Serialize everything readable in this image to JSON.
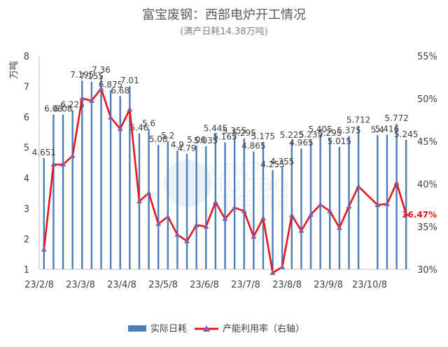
{
  "chart_data": {
    "type": "bar",
    "title": "富宝废钢：西部电炉开工情况",
    "subtitle": "(满产日耗14.38万吨)",
    "ylabel_left": "万吨",
    "ylim_left": [
      1,
      8
    ],
    "yticks_left": [
      1,
      2,
      3,
      4,
      5,
      6,
      7,
      8
    ],
    "ylim_right": [
      0.3,
      0.55
    ],
    "yticks_right": [
      "30%",
      "35%",
      "40%",
      "45%",
      "50%",
      "55%"
    ],
    "xtick_labels": [
      "23/2/8",
      "23/3/8",
      "23/4/8",
      "23/5/8",
      "23/6/8",
      "23/7/8",
      "23/8/8",
      "23/9/8",
      "23/10/8"
    ],
    "series": [
      {
        "name": "实际日耗",
        "kind": "bar",
        "color": "#4a7ebb",
        "values": [
          4.651,
          6.08,
          6.08,
          6.225,
          7.195,
          7.155,
          7.36,
          6.875,
          6.68,
          7.01,
          5.46,
          5.6,
          5.08,
          5.2,
          4.9,
          4.79,
          5.06,
          5.035,
          5.445,
          5.165,
          5.355,
          5.295,
          4.865,
          5.175,
          4.255,
          4.355,
          5.225,
          4.965,
          5.235,
          5.405,
          5.295,
          5.015,
          5.375,
          5.712,
          null,
          5.4,
          5.416,
          5.772,
          5.245
        ],
        "labels": [
          "4.651",
          "6.08",
          "6.08",
          "6.225",
          "7.195",
          "7.155",
          "7.36",
          "6.875",
          "6.68",
          "7.01",
          "5.46",
          "5.6",
          "5.08",
          "5.2",
          "4.9",
          "4.79",
          "5.06",
          "5.035",
          "5.445",
          "5.165",
          "5.355",
          "5.295",
          "4.865",
          "5.175",
          "4.255",
          "4.355",
          "5.225",
          "4.965",
          "5.235",
          "5.405",
          "5.295",
          "5.015",
          "5.375",
          "5.712",
          "",
          "5.4",
          "5.416",
          "5.772",
          "5.245"
        ]
      },
      {
        "name": "产能利用率（右轴）",
        "kind": "line",
        "axis": "right",
        "color": "#e8141b",
        "marker_color": "#7f5fa8",
        "values": [
          0.3233,
          0.4228,
          0.4228,
          0.4329,
          0.5004,
          0.4976,
          0.5118,
          0.4781,
          0.4645,
          0.4875,
          0.3797,
          0.3894,
          0.3533,
          0.3616,
          0.3407,
          0.3331,
          0.3519,
          0.3501,
          0.3787,
          0.3592,
          0.3724,
          0.3682,
          0.3383,
          0.3599,
          0.2959,
          0.3028,
          0.3634,
          0.3453,
          0.364,
          0.3759,
          0.3682,
          0.3487,
          0.3738,
          0.3972,
          null,
          0.3755,
          0.3766,
          0.4014,
          0.3647
        ]
      }
    ],
    "last_value_label": "36.47%",
    "legend_position": "bottom",
    "grid": false
  },
  "watermark": {
    "text_cn_top": "富宝资讯",
    "text_en": "fubao",
    "text_cn_bottom": "富宝资讯"
  }
}
